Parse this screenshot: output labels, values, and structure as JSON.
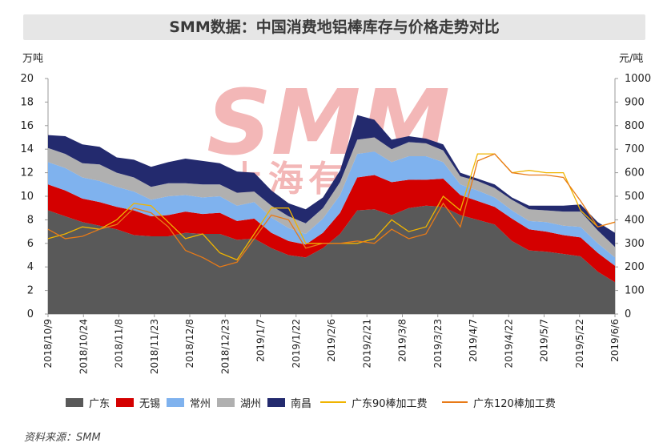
{
  "title": "SMM数据：中国消费地铝棒库存与价格走势对比",
  "units": {
    "left": "万吨",
    "right": "元/吨"
  },
  "source": "资料来源：SMM",
  "watermark": {
    "main": "SMM",
    "sub": "上海有色网",
    "color": "#f3b7b7"
  },
  "colors": {
    "广东": "#595959",
    "无锡": "#d40000",
    "常州": "#7fb2ee",
    "湖州": "#b0b0b0",
    "南昌": "#232a6e",
    "广东90棒加工费": "#f0b400",
    "广东120棒加工费": "#e87a17"
  },
  "chart_data": {
    "type": "area",
    "stacked": true,
    "x_tick_labels": [
      "2018/10/9",
      "2018/10/24",
      "2018/11/8",
      "2018/11/23",
      "2018/12/8",
      "2018/12/23",
      "2019/1/7",
      "2019/1/22",
      "2019/2/6",
      "2019/2/21",
      "2019/3/8",
      "2019/3/23",
      "2019/4/7",
      "2019/4/22",
      "2019/5/7",
      "2019/5/22",
      "2019/6/6"
    ],
    "x_count": 34,
    "y_left": {
      "label": "万吨",
      "ylim": [
        0,
        20
      ],
      "ticks": [
        0,
        2,
        4,
        6,
        8,
        10,
        12,
        14,
        16,
        18,
        20
      ]
    },
    "y_right": {
      "label": "元/吨",
      "ylim": [
        0,
        1000
      ],
      "ticks": [
        0,
        100,
        200,
        300,
        400,
        500,
        600,
        700,
        800,
        900,
        1000
      ]
    },
    "legend_position": "bottom",
    "series": [
      {
        "name": "广东",
        "kind": "area",
        "axis": "left",
        "values": [
          8.8,
          8.3,
          7.8,
          7.5,
          7.2,
          6.7,
          6.6,
          6.6,
          6.9,
          6.8,
          6.8,
          6.3,
          6.4,
          5.6,
          5.0,
          4.8,
          5.6,
          6.8,
          8.8,
          8.9,
          8.4,
          9.0,
          9.2,
          9.1,
          8.4,
          8.0,
          7.6,
          6.2,
          5.4,
          5.3,
          5.1,
          4.9,
          3.6,
          2.7
        ]
      },
      {
        "name": "无锡",
        "kind": "area",
        "axis": "left",
        "values": [
          2.2,
          2.2,
          2.0,
          2.0,
          1.9,
          2.1,
          1.7,
          1.8,
          1.8,
          1.7,
          1.8,
          1.6,
          1.7,
          1.3,
          1.2,
          1.1,
          1.3,
          1.8,
          2.8,
          2.9,
          2.8,
          2.4,
          2.2,
          2.4,
          1.7,
          1.6,
          1.5,
          1.9,
          1.8,
          1.7,
          1.6,
          1.6,
          1.6,
          1.4
        ]
      },
      {
        "name": "常州",
        "kind": "area",
        "axis": "left",
        "values": [
          1.9,
          1.9,
          1.8,
          1.8,
          1.7,
          1.6,
          1.4,
          1.6,
          1.4,
          1.4,
          1.4,
          1.3,
          1.4,
          1.3,
          1.1,
          0.9,
          1.2,
          1.5,
          2.0,
          2.0,
          1.7,
          2.0,
          2.0,
          1.4,
          0.9,
          0.9,
          0.8,
          0.7,
          0.7,
          0.8,
          0.8,
          0.9,
          0.8,
          0.7
        ]
      },
      {
        "name": "湖州",
        "kind": "area",
        "axis": "left",
        "values": [
          1.2,
          1.2,
          1.2,
          1.4,
          1.2,
          1.2,
          1.1,
          1.1,
          1.0,
          1.1,
          1.0,
          1.1,
          0.9,
          1.0,
          1.0,
          0.9,
          0.9,
          1.1,
          1.2,
          1.2,
          1.1,
          1.2,
          1.1,
          1.0,
          0.7,
          0.8,
          0.8,
          0.9,
          1.0,
          1.0,
          1.2,
          1.3,
          1.1,
          0.9
        ]
      },
      {
        "name": "南昌",
        "kind": "area",
        "axis": "left",
        "values": [
          1.1,
          1.5,
          1.6,
          1.5,
          1.3,
          1.5,
          1.7,
          1.8,
          2.1,
          2.0,
          1.8,
          1.8,
          1.6,
          1.3,
          1.1,
          1.2,
          0.9,
          1.0,
          2.1,
          1.5,
          0.8,
          0.5,
          0.4,
          0.5,
          0.3,
          0.2,
          0.3,
          0.2,
          0.3,
          0.4,
          0.5,
          0.6,
          0.7,
          1.2
        ]
      },
      {
        "name": "广东90棒加工费",
        "kind": "line",
        "axis": "right",
        "values": [
          320,
          340,
          370,
          360,
          400,
          470,
          460,
          390,
          320,
          340,
          260,
          230,
          340,
          450,
          450,
          300,
          300,
          300,
          300,
          320,
          400,
          350,
          370,
          500,
          440,
          680,
          680,
          600,
          610,
          600,
          600,
          440,
          370,
          390
        ]
      },
      {
        "name": "广东120棒加工费",
        "kind": "line",
        "axis": "right",
        "values": [
          360,
          320,
          330,
          360,
          380,
          450,
          430,
          370,
          270,
          240,
          200,
          220,
          320,
          420,
          400,
          280,
          300,
          300,
          310,
          300,
          360,
          320,
          340,
          470,
          370,
          650,
          680,
          600,
          590,
          590,
          580,
          480,
          370,
          390
        ]
      }
    ]
  },
  "legend": [
    {
      "label": "广东",
      "type": "box",
      "color_key": "广东"
    },
    {
      "label": "无锡",
      "type": "box",
      "color_key": "无锡"
    },
    {
      "label": "常州",
      "type": "box",
      "color_key": "常州"
    },
    {
      "label": "湖州",
      "type": "box",
      "color_key": "湖州"
    },
    {
      "label": "南昌",
      "type": "box",
      "color_key": "南昌"
    },
    {
      "label": "广东90棒加工费",
      "type": "line",
      "color_key": "广东90棒加工费"
    },
    {
      "label": "广东120棒加工费",
      "type": "line",
      "color_key": "广东120棒加工费"
    }
  ]
}
